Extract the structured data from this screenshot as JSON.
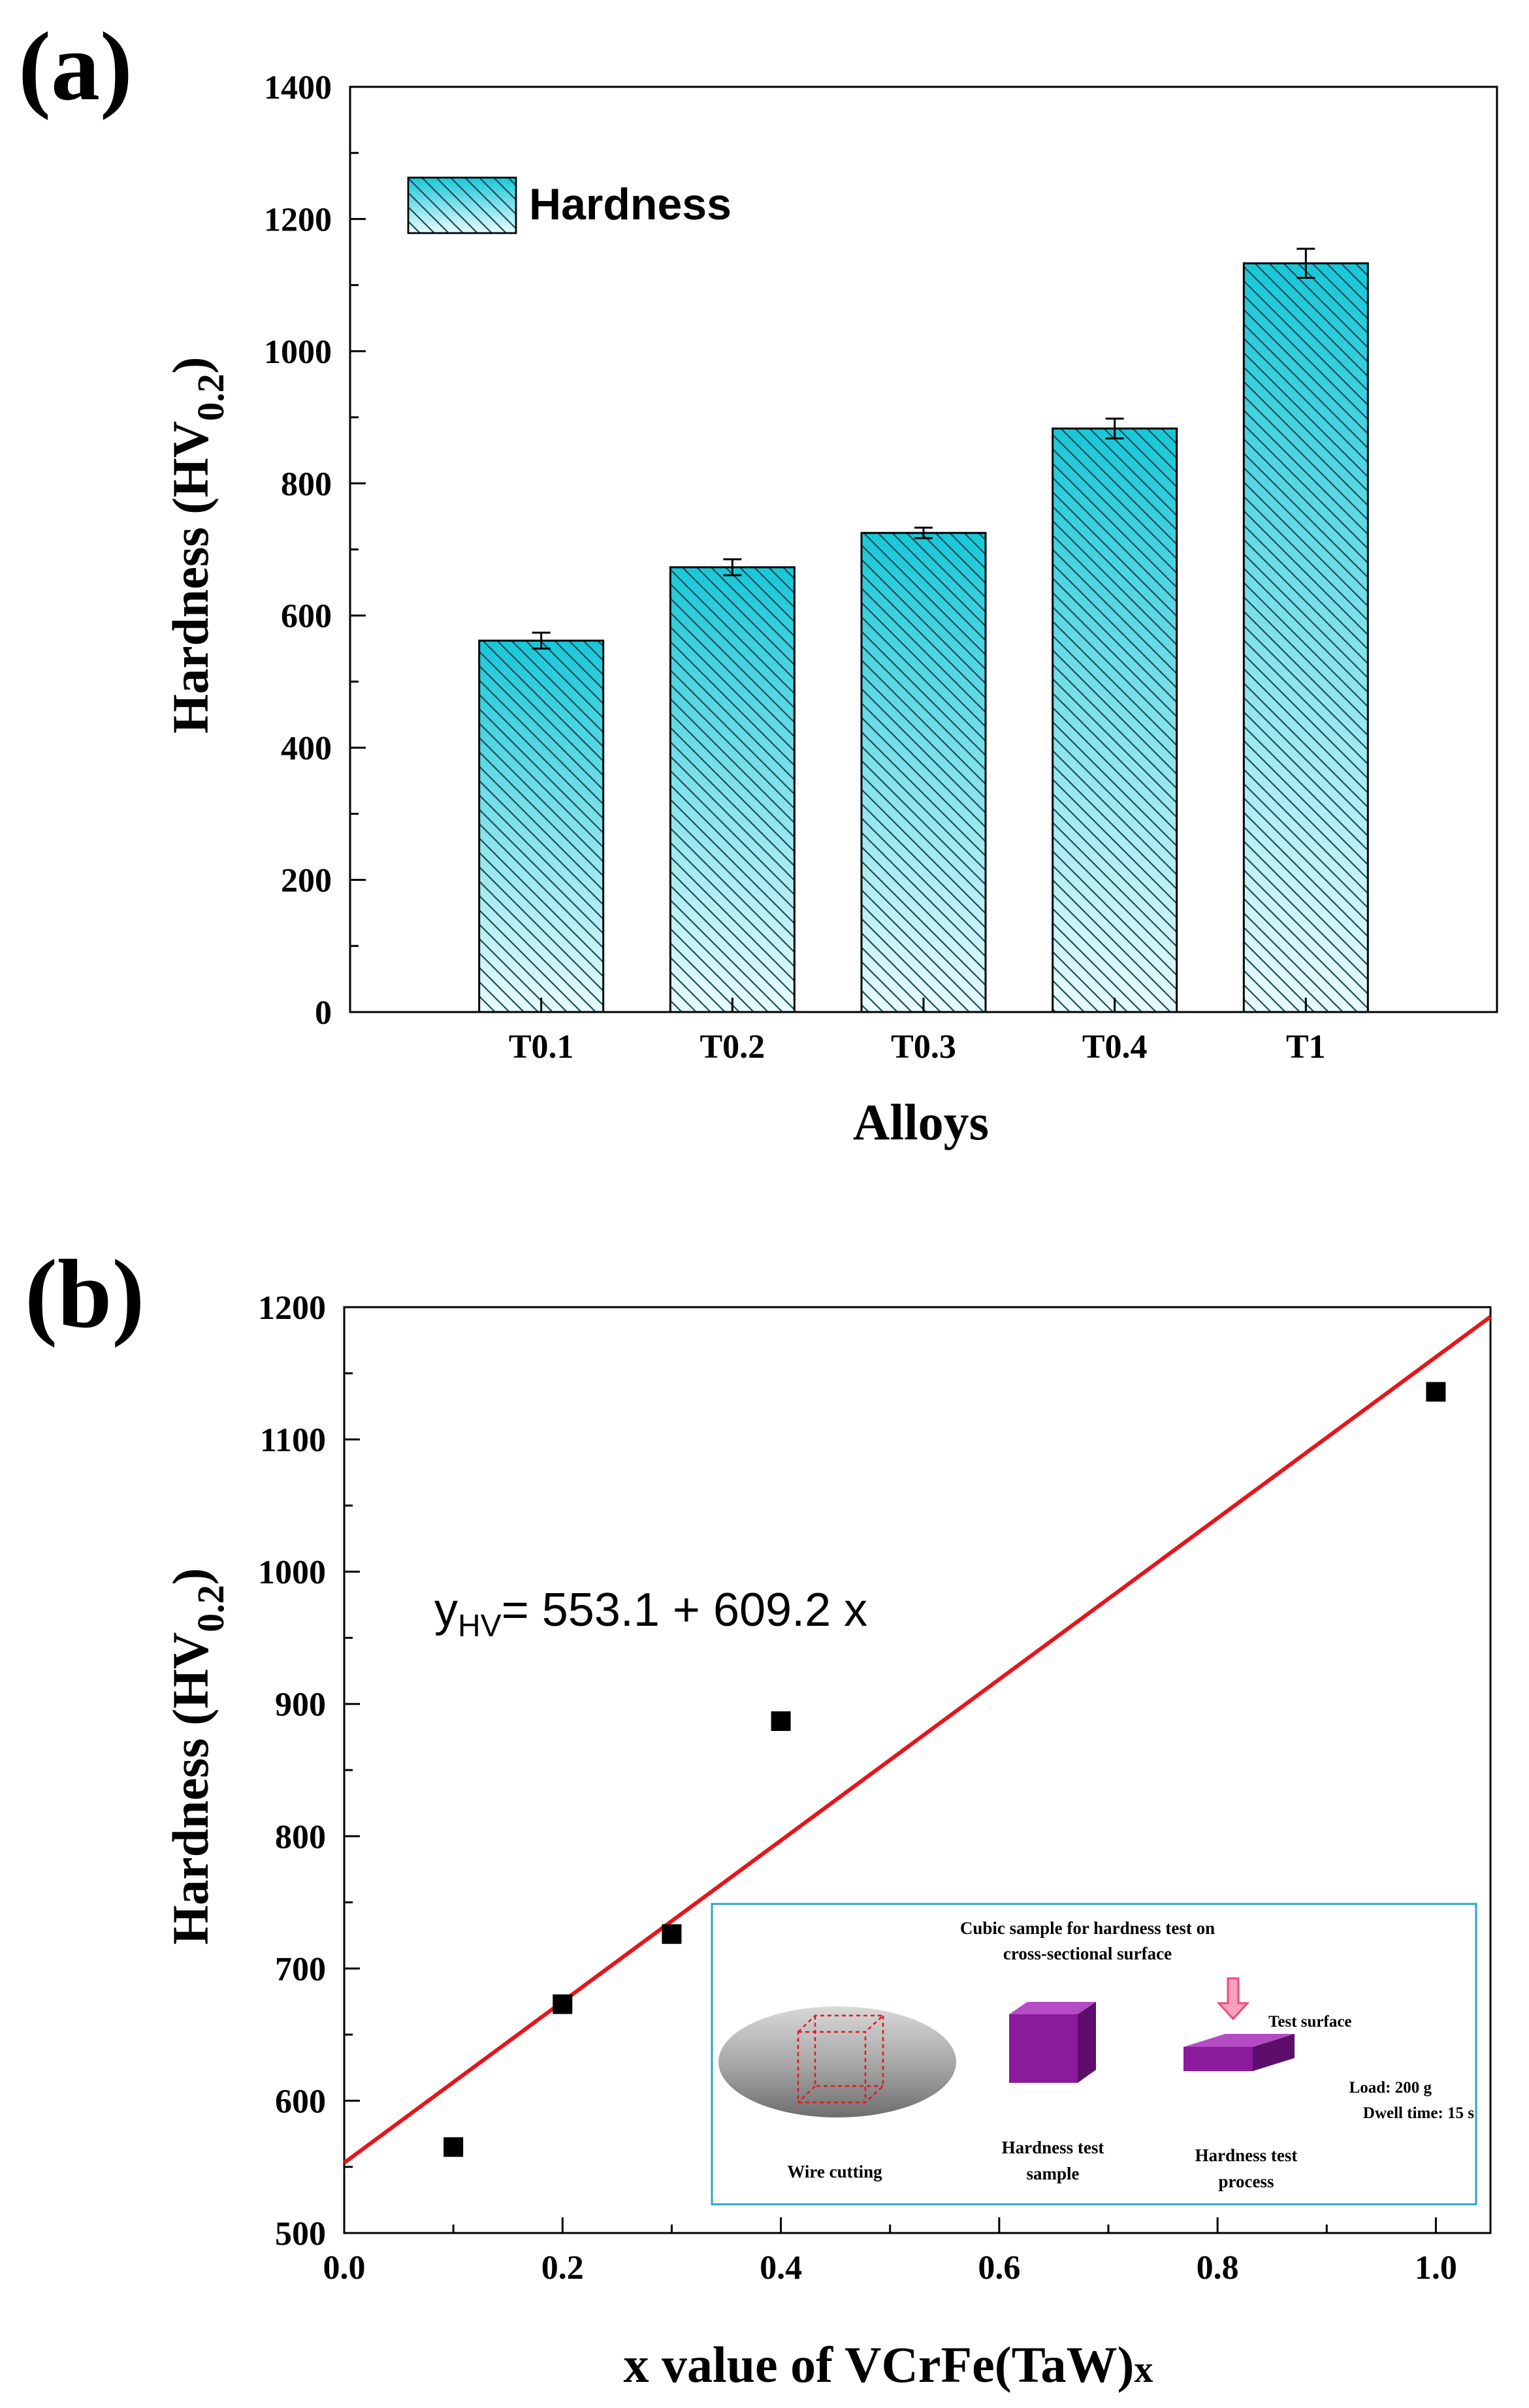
{
  "colors": {
    "bar_fill_top": "#19c7d8",
    "bar_fill_bottom": "#e9fbfd",
    "hatch": "#1d4d57",
    "fit_line": "#e8141a",
    "inset_border": "#2aa4c6",
    "cube_purple": "#8c1a9c",
    "arrow_pink": "#f04a7c",
    "disk_gray": "#9c9c9c"
  },
  "chart_data": [
    {
      "panel": "(a)",
      "type": "bar",
      "categories": [
        "T0.1",
        "T0.2",
        "T0.3",
        "T0.4",
        "T1"
      ],
      "values": [
        562,
        673,
        725,
        883,
        1133
      ],
      "errors": [
        12,
        12,
        8,
        15,
        22
      ],
      "legend": "Hardness",
      "legend_position": "top-left",
      "xlabel": "Alloys",
      "ylabel_main": "Hardness (HV",
      "ylabel_sub": "0.2",
      "ylabel_close": ")",
      "ylim": [
        0,
        1400
      ],
      "yticks": [
        0,
        200,
        400,
        600,
        800,
        1000,
        1200,
        1400
      ]
    },
    {
      "panel": "(b)",
      "type": "scatter",
      "x": [
        0.1,
        0.2,
        0.3,
        0.4,
        1.0
      ],
      "y": [
        565,
        673,
        726,
        887,
        1136
      ],
      "fit": {
        "intercept": 553.1,
        "slope": 609.2
      },
      "equation": {
        "y": "y",
        "sub": "HV",
        "rest": "= 553.1 + 609.2 x"
      },
      "xlabel": "x value of VCrFe(TaW)",
      "xlabel_sub": "x",
      "ylabel_main": "Hardness (HV",
      "ylabel_sub": "0.2",
      "ylabel_close": ")",
      "xlim": [
        0.0,
        1.05
      ],
      "ylim": [
        500,
        1200
      ],
      "xticks": [
        "0.0",
        "0.2",
        "0.4",
        "0.6",
        "0.8",
        "1.0"
      ],
      "yticks": [
        500,
        600,
        700,
        800,
        900,
        1000,
        1100,
        1200
      ]
    }
  ],
  "inset": {
    "title_line1": "Cubic sample for hardness test on",
    "title_line2": "cross-sectional surface",
    "test_surface": "Test surface",
    "load": "Load: 200 g",
    "dwell": "Dwell time: 15 s",
    "wire_cutting": "Wire cutting",
    "sample_line1": "Hardness test",
    "sample_line2": "sample",
    "process_line1": "Hardness test",
    "process_line2": "process"
  }
}
